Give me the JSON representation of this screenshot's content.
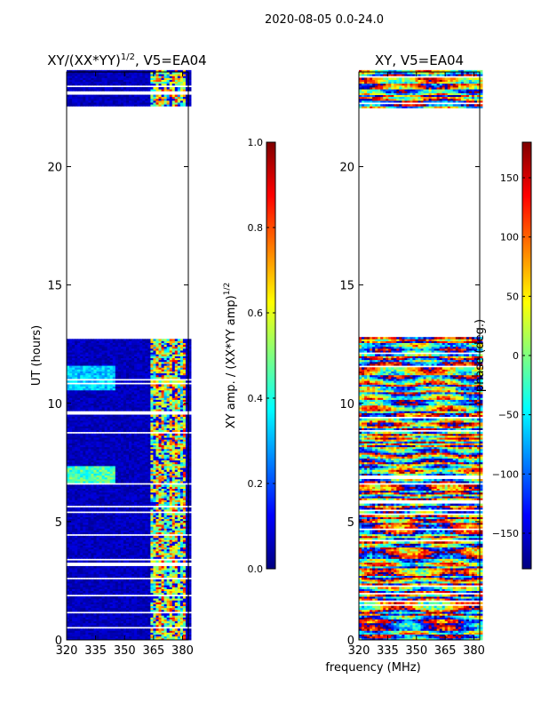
{
  "suptitle": "2020-08-05 0.0-24.0",
  "xlabel_shared": "frequency (MHz)",
  "colors": {
    "jet": [
      "#00007f",
      "#0000ff",
      "#007fff",
      "#00ffff",
      "#7fff7f",
      "#ffff00",
      "#ff7f00",
      "#ff0000",
      "#7f0000"
    ]
  },
  "chart_data": [
    {
      "type": "heatmap",
      "title_prefix": "XY/(XX*YY)",
      "title_exp": "1/2",
      "title_suffix": ", V5=EA04",
      "xlabel": "",
      "ylabel": "UT (hours)",
      "xlim": [
        320,
        383
      ],
      "ylim": [
        0,
        24
      ],
      "xticks": [
        320,
        335,
        350,
        365,
        380
      ],
      "yticks": [
        0,
        5,
        10,
        15,
        20
      ],
      "data_gap_hours": [
        [
          12.8,
          22.4
        ]
      ],
      "colorbar": {
        "label_prefix": "XY amp. / (XX*YY amp)",
        "label_exp": "1/2",
        "range": [
          0.0,
          1.0
        ],
        "ticks": [
          0.0,
          0.2,
          0.4,
          0.6,
          0.8,
          1.0
        ],
        "tick_labels": [
          "0.0",
          "0.2",
          "0.4",
          "0.6",
          "0.8",
          "1.0"
        ]
      }
    },
    {
      "type": "heatmap",
      "title": "XY, V5=EA04",
      "xlabel": "frequency (MHz)",
      "ylabel": "",
      "xlim": [
        320,
        383
      ],
      "ylim": [
        0,
        24
      ],
      "xticks": [
        320,
        335,
        350,
        365,
        380
      ],
      "yticks": [
        0,
        5,
        10,
        15,
        20
      ],
      "data_gap_hours": [
        [
          12.8,
          22.4
        ]
      ],
      "colorbar": {
        "label": "phase (deg.)",
        "range": [
          -180,
          180
        ],
        "ticks": [
          -150,
          -100,
          -50,
          0,
          50,
          100,
          150
        ],
        "tick_labels": [
          "−150",
          "−100",
          "−50",
          "0",
          "50",
          "100",
          "150"
        ]
      }
    }
  ]
}
